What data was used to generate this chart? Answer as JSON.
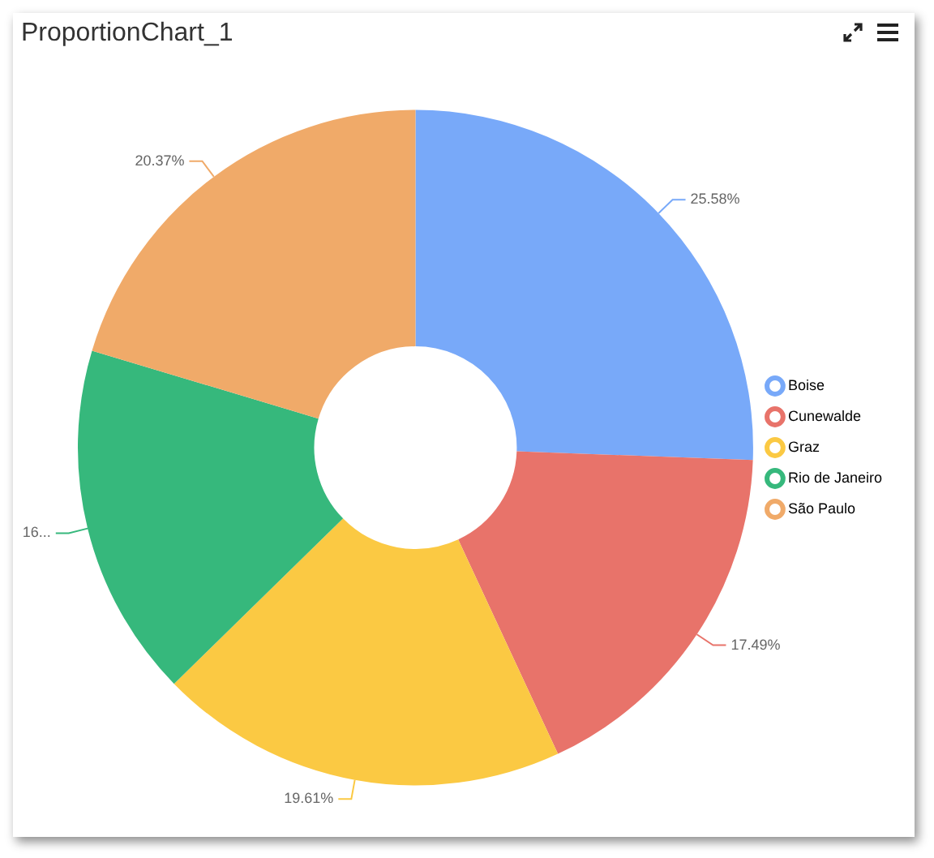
{
  "chart_data": {
    "type": "donut",
    "title": "ProportionChart_1",
    "categories": [
      "Boise",
      "Cunewalde",
      "Graz",
      "Rio de Janeiro",
      "São Paulo"
    ],
    "values": [
      25.58,
      17.49,
      19.61,
      16.95,
      20.37
    ],
    "value_labels": [
      "25.58%",
      "17.49%",
      "19.61%",
      "16...",
      "20.37%"
    ],
    "colors": [
      "#78a9f9",
      "#e8736a",
      "#fbc943",
      "#36b87c",
      "#f0aa69"
    ],
    "legend": "right"
  }
}
